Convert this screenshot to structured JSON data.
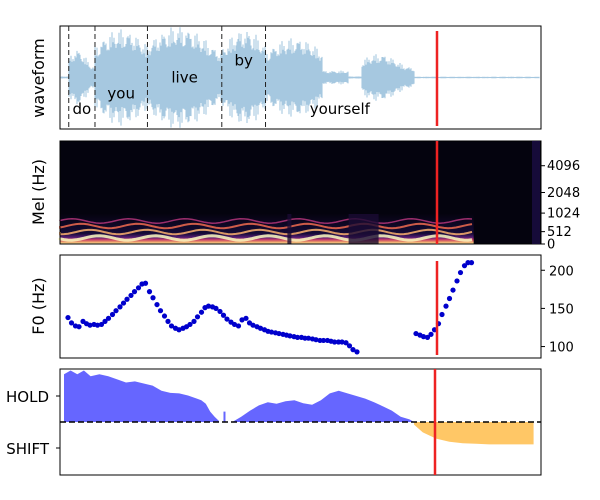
{
  "chart_data": [
    {
      "type": "area",
      "panel": "waveform",
      "ylabel": "waveform",
      "words": [
        {
          "label": "do",
          "start": 0.0,
          "end": 0.06,
          "y": -0.55
        },
        {
          "label": "you",
          "start": 0.06,
          "end": 0.18,
          "y": -0.28
        },
        {
          "label": "live",
          "start": 0.18,
          "end": 0.35,
          "y": 0.0
        },
        {
          "label": "by",
          "start": 0.35,
          "end": 0.45,
          "y": 0.3
        },
        {
          "label": "yourself",
          "start": 0.45,
          "end": 0.79,
          "y": -0.55
        }
      ],
      "word_boundaries": [
        0.0,
        0.06,
        0.18,
        0.35,
        0.45
      ],
      "xlim": [
        -0.02,
        1.08
      ],
      "ylim": [
        -0.9,
        0.9
      ],
      "colors": {
        "wave": "#a6c8e0",
        "boundary": "#222222"
      }
    },
    {
      "type": "heatmap",
      "panel": "mel",
      "ylabel": "Mel (Hz)",
      "yticks": [
        "0",
        "512",
        "1024",
        "2048",
        "4096"
      ],
      "ytick_positions": [
        0,
        0.12,
        0.3,
        0.5,
        0.76
      ],
      "voiced_until": 0.86,
      "colormap": "magma"
    },
    {
      "type": "scatter",
      "panel": "f0",
      "ylabel": "F0 (Hz)",
      "yticks": [
        "100",
        "150",
        "200"
      ],
      "ytick_values": [
        100,
        150,
        200
      ],
      "ylim": [
        85,
        220
      ],
      "segments": [
        {
          "x": [
            0.0,
            0.007,
            0.015,
            0.022,
            0.03,
            0.037,
            0.044,
            0.052,
            0.059,
            0.067,
            0.074,
            0.081,
            0.089,
            0.096,
            0.104,
            0.111,
            0.118,
            0.126,
            0.133,
            0.141,
            0.148,
            0.155,
            0.163,
            0.17,
            0.178,
            0.185,
            0.193,
            0.2,
            0.207,
            0.215,
            0.222,
            0.23,
            0.237,
            0.244,
            0.252,
            0.259,
            0.267,
            0.274,
            0.281,
            0.289,
            0.296,
            0.304,
            0.311,
            0.318,
            0.326,
            0.333,
            0.341,
            0.348,
            0.356,
            0.363,
            0.37,
            0.378,
            0.385,
            0.393,
            0.4,
            0.407,
            0.415,
            0.422,
            0.43,
            0.437,
            0.444,
            0.452,
            0.459,
            0.467,
            0.474,
            0.481,
            0.489,
            0.496,
            0.504,
            0.511,
            0.519,
            0.526,
            0.533,
            0.541,
            0.548,
            0.556,
            0.563,
            0.57,
            0.578
          ],
          "y": [
            138,
            131,
            127,
            126,
            133,
            130,
            128,
            129,
            128,
            129,
            133,
            137,
            142,
            147,
            152,
            157,
            162,
            167,
            172,
            177,
            182,
            183,
            172,
            164,
            155,
            147,
            140,
            133,
            127,
            124,
            122,
            124,
            126,
            129,
            133,
            139,
            145,
            151,
            153,
            152,
            150,
            146,
            141,
            136,
            132,
            129,
            127,
            135,
            137,
            131,
            128,
            126,
            124,
            122,
            120,
            119,
            118,
            117,
            116,
            115,
            114,
            113,
            112,
            112,
            111,
            111,
            110,
            109,
            108,
            108,
            108,
            107,
            106,
            106,
            106,
            105,
            101,
            96,
            93
          ]
        },
        {
          "x": [
            0.696,
            0.704,
            0.711,
            0.719,
            0.726,
            0.733,
            0.741,
            0.748,
            0.756,
            0.763,
            0.77,
            0.778,
            0.785,
            0.793,
            0.8,
            0.807
          ],
          "y": [
            117,
            115,
            113,
            112,
            116,
            122,
            130,
            142,
            153,
            163,
            174,
            186,
            197,
            206,
            210,
            210
          ]
        }
      ],
      "color": "#0000cc"
    },
    {
      "type": "area",
      "panel": "turn",
      "yticks": [
        "HOLD",
        "SHIFT"
      ],
      "ytick_values": [
        0.5,
        -0.5
      ],
      "ylim": [
        -1.0,
        1.0
      ],
      "hold_x": [
        0.0,
        0.015,
        0.03,
        0.045,
        0.06,
        0.08,
        0.1,
        0.12,
        0.14,
        0.16,
        0.18,
        0.2,
        0.22,
        0.24,
        0.26,
        0.28,
        0.3,
        0.31,
        0.32,
        0.33,
        0.34,
        0.35
      ],
      "hold_y": [
        0.92,
        0.99,
        0.92,
        0.99,
        0.88,
        0.92,
        0.88,
        0.82,
        0.76,
        0.78,
        0.74,
        0.7,
        0.6,
        0.56,
        0.55,
        0.51,
        0.45,
        0.42,
        0.35,
        0.2,
        0.1,
        0.02
      ],
      "hold2_x": [
        0.38,
        0.4,
        0.42,
        0.44,
        0.46,
        0.48,
        0.5,
        0.52,
        0.54,
        0.56,
        0.58,
        0.6,
        0.62,
        0.64,
        0.66,
        0.68,
        0.7,
        0.72,
        0.74,
        0.76,
        0.78,
        0.79
      ],
      "hold2_y": [
        0.0,
        0.1,
        0.22,
        0.32,
        0.38,
        0.35,
        0.4,
        0.42,
        0.36,
        0.33,
        0.42,
        0.55,
        0.6,
        0.55,
        0.5,
        0.45,
        0.38,
        0.3,
        0.22,
        0.1,
        0.05,
        0.0
      ],
      "shift_x": [
        0.79,
        0.81,
        0.84,
        0.87,
        0.9,
        0.93,
        0.96,
        1.0,
        1.04,
        1.06
      ],
      "shift_y": [
        -0.05,
        -0.2,
        -0.32,
        -0.38,
        -0.41,
        -0.42,
        -0.43,
        -0.43,
        -0.43,
        -0.43
      ],
      "colors": {
        "hold": "#6666ff",
        "shift": "#ffc766",
        "zero_line": "#000000"
      }
    }
  ],
  "cursor": {
    "t": 0.82,
    "color": "#ee2222"
  }
}
